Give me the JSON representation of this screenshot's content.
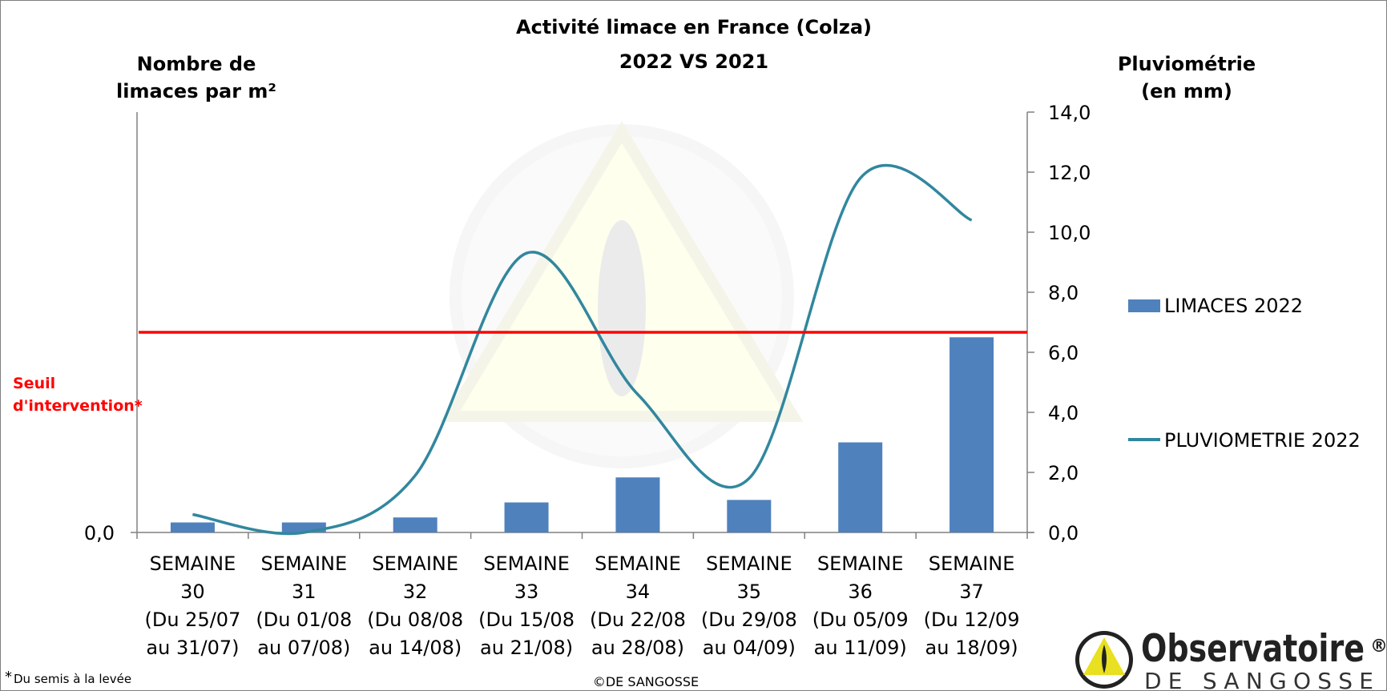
{
  "chart_data": {
    "type": "bar+line",
    "title": "Activité limace en France (Colza)",
    "subtitle": "2022 VS 2021",
    "ylabel_left": [
      "Nombre de",
      "limaces par m²"
    ],
    "ylabel_right": [
      "Pluviométrie",
      "(en mm)"
    ],
    "left_tick_labels": [
      "0,0"
    ],
    "right_tick_labels": [
      "0,0",
      "2,0",
      "4,0",
      "6,0",
      "8,0",
      "10,0",
      "12,0",
      "14,0"
    ],
    "right_ylim": [
      0,
      14
    ],
    "categories": [
      {
        "lines": [
          "SEMAINE",
          "30",
          "(Du 25/07",
          "au 31/07)"
        ]
      },
      {
        "lines": [
          "SEMAINE",
          "31",
          "(Du 01/08",
          "au 07/08)"
        ]
      },
      {
        "lines": [
          "SEMAINE",
          "32",
          "(Du 08/08",
          "au 14/08)"
        ]
      },
      {
        "lines": [
          "SEMAINE",
          "33",
          "(Du 15/08",
          "au 21/08)"
        ]
      },
      {
        "lines": [
          "SEMAINE",
          "34",
          "(Du 22/08",
          "au 28/08)"
        ]
      },
      {
        "lines": [
          "SEMAINE",
          "35",
          "(Du 29/08",
          "au 04/09)"
        ]
      },
      {
        "lines": [
          "SEMAINE",
          "36",
          "(Du 05/09",
          "au 11/09)"
        ]
      },
      {
        "lines": [
          "SEMAINE",
          "37",
          "(Du 12/09",
          "au 18/09)"
        ]
      }
    ],
    "series": [
      {
        "name": "LIMACES 2022",
        "type": "bar",
        "axis": "left",
        "color": "#4f81bd",
        "values": [
          0.2,
          0.2,
          0.3,
          0.6,
          1.1,
          0.65,
          1.8,
          3.9
        ]
      },
      {
        "name": "PLUVIOMETRIE 2022",
        "type": "line",
        "axis": "right",
        "color": "#31879e",
        "values": [
          0.6,
          0.0,
          1.9,
          9.3,
          4.6,
          1.8,
          11.8,
          10.4
        ]
      }
    ],
    "threshold": {
      "label": [
        "Seuil",
        "d'intervention*"
      ],
      "color": "#ff0000",
      "value": 4.0
    },
    "left_ylim": [
      0,
      8.4
    ],
    "legend_position": "right"
  },
  "footnote_mark": "*",
  "footnote": "Du semis à la levée",
  "copyright": "©DE SANGOSSE",
  "logo": {
    "name": "Observatoire",
    "reg": "®",
    "sub": "DE SANGOSSE"
  }
}
